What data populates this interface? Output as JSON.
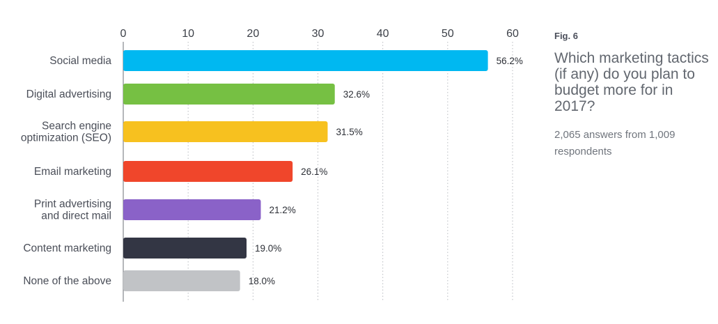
{
  "figure": {
    "label": "Fig. 6",
    "question": "Which marketing tactics (if any) do you plan to budget more for in 2017?",
    "answers_note": "2,065 answers from 1,009 respondents"
  },
  "chart_data": {
    "type": "bar",
    "orientation": "horizontal",
    "categories": [
      "Social media",
      "Digital advertising",
      "Search engine\noptimization (SEO)",
      "Email marketing",
      "Print advertising\nand direct mail",
      "Content marketing",
      "None of the above"
    ],
    "values": [
      56.2,
      32.6,
      31.5,
      26.1,
      21.2,
      19.0,
      18.0
    ],
    "value_labels": [
      "56.2%",
      "32.6%",
      "31.5%",
      "26.1%",
      "21.2%",
      "19.0%",
      "18.0%"
    ],
    "colors": [
      "#00b8f1",
      "#76c043",
      "#f7c11f",
      "#f0462b",
      "#8a62c8",
      "#333644",
      "#c1c3c6"
    ],
    "xticks": [
      0,
      10,
      20,
      30,
      40,
      50,
      60
    ],
    "xlim": [
      0,
      60
    ],
    "axis_position": "top",
    "grid": "vertical dotted"
  }
}
